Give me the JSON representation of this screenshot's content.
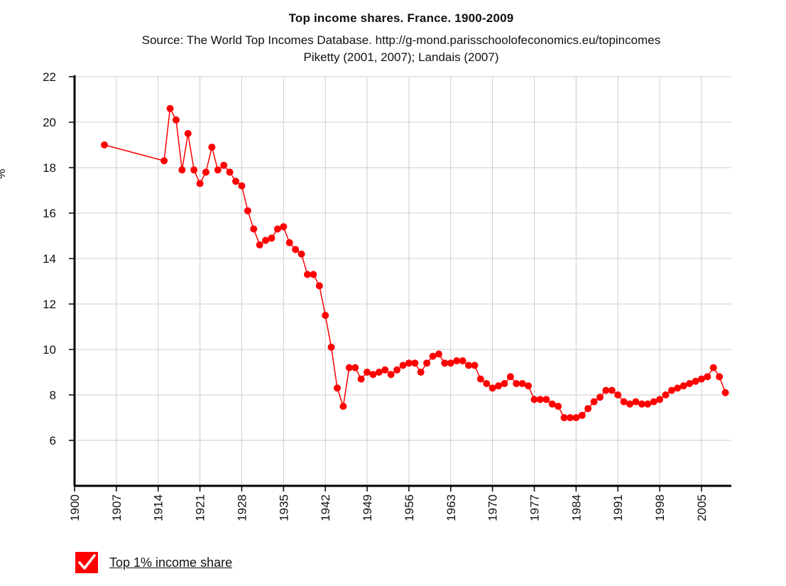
{
  "chart_data": {
    "type": "line",
    "title": "Top income shares. France. 1900-2009",
    "subtitle_lines": [
      "Source: The World Top Incomes Database. http://g-mond.parisschoolofeconomics.eu/topincomes",
      "Piketty (2001, 2007); Landais (2007)"
    ],
    "ylabel": "%",
    "xlim": [
      1900,
      2010
    ],
    "ylim": [
      4,
      22
    ],
    "x_ticks": [
      "1900",
      "1907",
      "1914",
      "1921",
      "1928",
      "1935",
      "1942",
      "1949",
      "1956",
      "1963",
      "1970",
      "1977",
      "1984",
      "1991",
      "1998",
      "2005"
    ],
    "y_ticks": [
      "6",
      "8",
      "10",
      "12",
      "14",
      "16",
      "18",
      "20",
      "22"
    ],
    "grid": true,
    "legend_position": "bottom-left",
    "series": [
      {
        "name": "Top 1% income share",
        "color": "#ff0000",
        "points": [
          [
            1905,
            19.0
          ],
          [
            1915,
            18.3
          ],
          [
            1916,
            20.6
          ],
          [
            1917,
            20.1
          ],
          [
            1918,
            17.9
          ],
          [
            1919,
            19.5
          ],
          [
            1920,
            17.9
          ],
          [
            1921,
            17.3
          ],
          [
            1922,
            17.8
          ],
          [
            1923,
            18.9
          ],
          [
            1924,
            17.9
          ],
          [
            1925,
            18.1
          ],
          [
            1926,
            17.8
          ],
          [
            1927,
            17.4
          ],
          [
            1928,
            17.2
          ],
          [
            1929,
            16.1
          ],
          [
            1930,
            15.3
          ],
          [
            1931,
            14.6
          ],
          [
            1932,
            14.8
          ],
          [
            1933,
            14.9
          ],
          [
            1934,
            15.3
          ],
          [
            1935,
            15.4
          ],
          [
            1936,
            14.7
          ],
          [
            1937,
            14.4
          ],
          [
            1938,
            14.2
          ],
          [
            1939,
            13.3
          ],
          [
            1940,
            13.3
          ],
          [
            1941,
            12.8
          ],
          [
            1942,
            11.5
          ],
          [
            1943,
            10.1
          ],
          [
            1944,
            8.3
          ],
          [
            1945,
            7.5
          ],
          [
            1946,
            9.2
          ],
          [
            1947,
            9.2
          ],
          [
            1948,
            8.7
          ],
          [
            1949,
            9.0
          ],
          [
            1950,
            8.9
          ],
          [
            1951,
            9.0
          ],
          [
            1952,
            9.1
          ],
          [
            1953,
            8.9
          ],
          [
            1954,
            9.1
          ],
          [
            1955,
            9.3
          ],
          [
            1956,
            9.4
          ],
          [
            1957,
            9.4
          ],
          [
            1958,
            9.0
          ],
          [
            1959,
            9.4
          ],
          [
            1960,
            9.7
          ],
          [
            1961,
            9.8
          ],
          [
            1962,
            9.4
          ],
          [
            1963,
            9.4
          ],
          [
            1964,
            9.5
          ],
          [
            1965,
            9.5
          ],
          [
            1966,
            9.3
          ],
          [
            1967,
            9.3
          ],
          [
            1968,
            8.7
          ],
          [
            1969,
            8.5
          ],
          [
            1970,
            8.3
          ],
          [
            1971,
            8.4
          ],
          [
            1972,
            8.5
          ],
          [
            1973,
            8.8
          ],
          [
            1974,
            8.5
          ],
          [
            1975,
            8.5
          ],
          [
            1976,
            8.4
          ],
          [
            1977,
            7.8
          ],
          [
            1978,
            7.8
          ],
          [
            1979,
            7.8
          ],
          [
            1980,
            7.6
          ],
          [
            1981,
            7.5
          ],
          [
            1982,
            7.0
          ],
          [
            1983,
            7.0
          ],
          [
            1984,
            7.0
          ],
          [
            1985,
            7.1
          ],
          [
            1986,
            7.4
          ],
          [
            1987,
            7.7
          ],
          [
            1988,
            7.9
          ],
          [
            1989,
            8.2
          ],
          [
            1990,
            8.2
          ],
          [
            1991,
            8.0
          ],
          [
            1992,
            7.7
          ],
          [
            1993,
            7.6
          ],
          [
            1994,
            7.7
          ],
          [
            1995,
            7.6
          ],
          [
            1996,
            7.6
          ],
          [
            1997,
            7.7
          ],
          [
            1998,
            7.8
          ],
          [
            1999,
            8.0
          ],
          [
            2000,
            8.2
          ],
          [
            2001,
            8.3
          ],
          [
            2002,
            8.4
          ],
          [
            2003,
            8.5
          ],
          [
            2004,
            8.6
          ],
          [
            2005,
            8.7
          ],
          [
            2006,
            8.8
          ],
          [
            2007,
            9.2
          ],
          [
            2008,
            8.8
          ],
          [
            2009,
            8.1
          ]
        ]
      }
    ]
  },
  "legend": {
    "label": "Top 1% income share",
    "checked": true
  }
}
